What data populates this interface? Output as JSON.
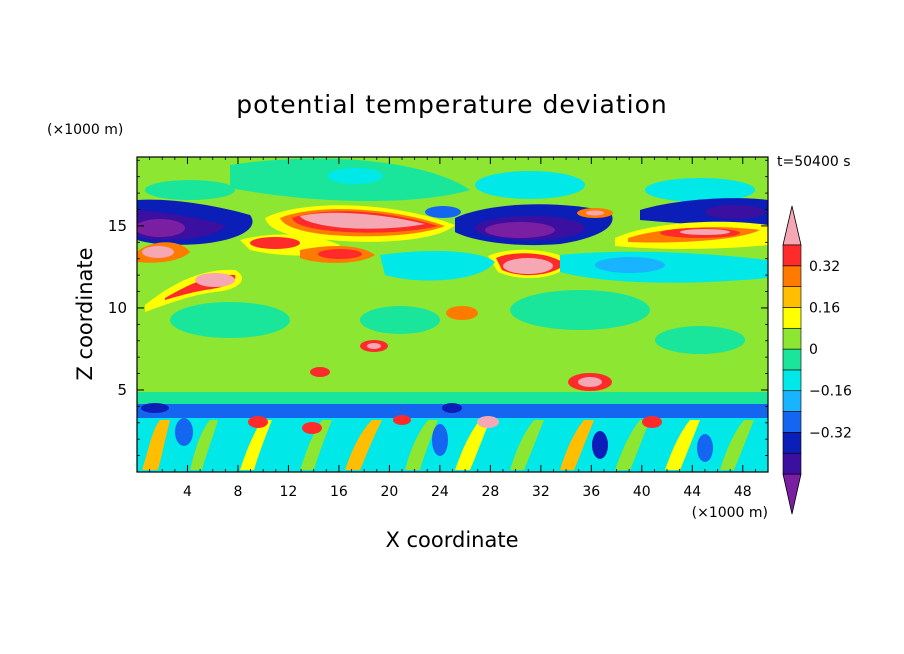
{
  "chart_data": {
    "type": "heatmap",
    "title": "potential temperature deviation",
    "xlabel": "X coordinate",
    "ylabel": "Z coordinate",
    "x_unit": "(×1000 m)",
    "y_unit": "(×1000 m)",
    "time_label": "t=50400 s",
    "xlim": [
      0,
      50
    ],
    "ylim": [
      0,
      19.2
    ],
    "x_ticks": [
      "4",
      "8",
      "12",
      "16",
      "20",
      "24",
      "28",
      "32",
      "36",
      "40",
      "44",
      "48"
    ],
    "y_ticks": [
      "5",
      "10",
      "15"
    ],
    "colorbar": {
      "levels": [
        -0.48,
        -0.4,
        -0.32,
        -0.24,
        -0.16,
        -0.08,
        0,
        0.08,
        0.16,
        0.24,
        0.32,
        0.4
      ],
      "colors": [
        "#7a1fa2",
        "#3b0fa0",
        "#0b1eb8",
        "#1466f0",
        "#19b4ff",
        "#00e8e8",
        "#19e69a",
        "#8ce632",
        "#ffff00",
        "#ffbe00",
        "#ff7a00",
        "#ff2a2a",
        "#f5a8b4"
      ],
      "labels": [
        "0.32",
        "0.16",
        "0",
        "−0.16",
        "−0.32"
      ],
      "label_values": [
        0.32,
        0.16,
        0,
        -0.16,
        -0.32
      ]
    }
  }
}
